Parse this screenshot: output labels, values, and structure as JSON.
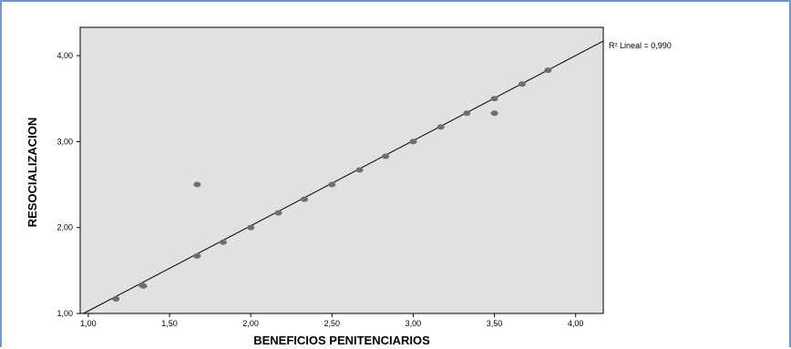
{
  "chart_data": {
    "type": "scatter",
    "title": "",
    "xlabel": "BENEFICIOS PENITENCIARIOS",
    "ylabel": "RESOCIALIZACION",
    "xlim": [
      0.95,
      4.17
    ],
    "ylim": [
      1.0,
      4.33
    ],
    "x_ticks": [
      1.0,
      1.5,
      2.0,
      2.5,
      3.0,
      3.5,
      4.0
    ],
    "x_tick_labels": [
      "1,00",
      "1,50",
      "2,00",
      "2,50",
      "3,00",
      "3,50",
      "4,00"
    ],
    "y_ticks": [
      1.0,
      2.0,
      3.0,
      4.0
    ],
    "y_tick_labels": [
      "1,00",
      "2,00",
      "3,00",
      "4,00"
    ],
    "grid": false,
    "points": [
      {
        "x": 1.17,
        "y": 1.17
      },
      {
        "x": 1.33,
        "y": 1.33
      },
      {
        "x": 1.34,
        "y": 1.32
      },
      {
        "x": 1.67,
        "y": 1.67
      },
      {
        "x": 1.67,
        "y": 2.5
      },
      {
        "x": 1.83,
        "y": 1.83
      },
      {
        "x": 2.0,
        "y": 2.0
      },
      {
        "x": 2.17,
        "y": 2.17
      },
      {
        "x": 2.33,
        "y": 2.33
      },
      {
        "x": 2.5,
        "y": 2.5
      },
      {
        "x": 2.67,
        "y": 2.67
      },
      {
        "x": 2.83,
        "y": 2.83
      },
      {
        "x": 3.0,
        "y": 3.0
      },
      {
        "x": 3.17,
        "y": 3.17
      },
      {
        "x": 3.33,
        "y": 3.33
      },
      {
        "x": 3.5,
        "y": 3.5
      },
      {
        "x": 3.5,
        "y": 3.33
      },
      {
        "x": 3.67,
        "y": 3.67
      },
      {
        "x": 3.83,
        "y": 3.83
      }
    ],
    "fit_line": {
      "from": [
        0.97,
        1.0
      ],
      "to": [
        4.17,
        4.17
      ]
    },
    "annotation": "R² Lineal = 0,990",
    "colors": {
      "plot_background": "#e2e0e1",
      "point": "#6e6e6e",
      "line": "#000000",
      "frame_border": "#6f97cf"
    }
  }
}
